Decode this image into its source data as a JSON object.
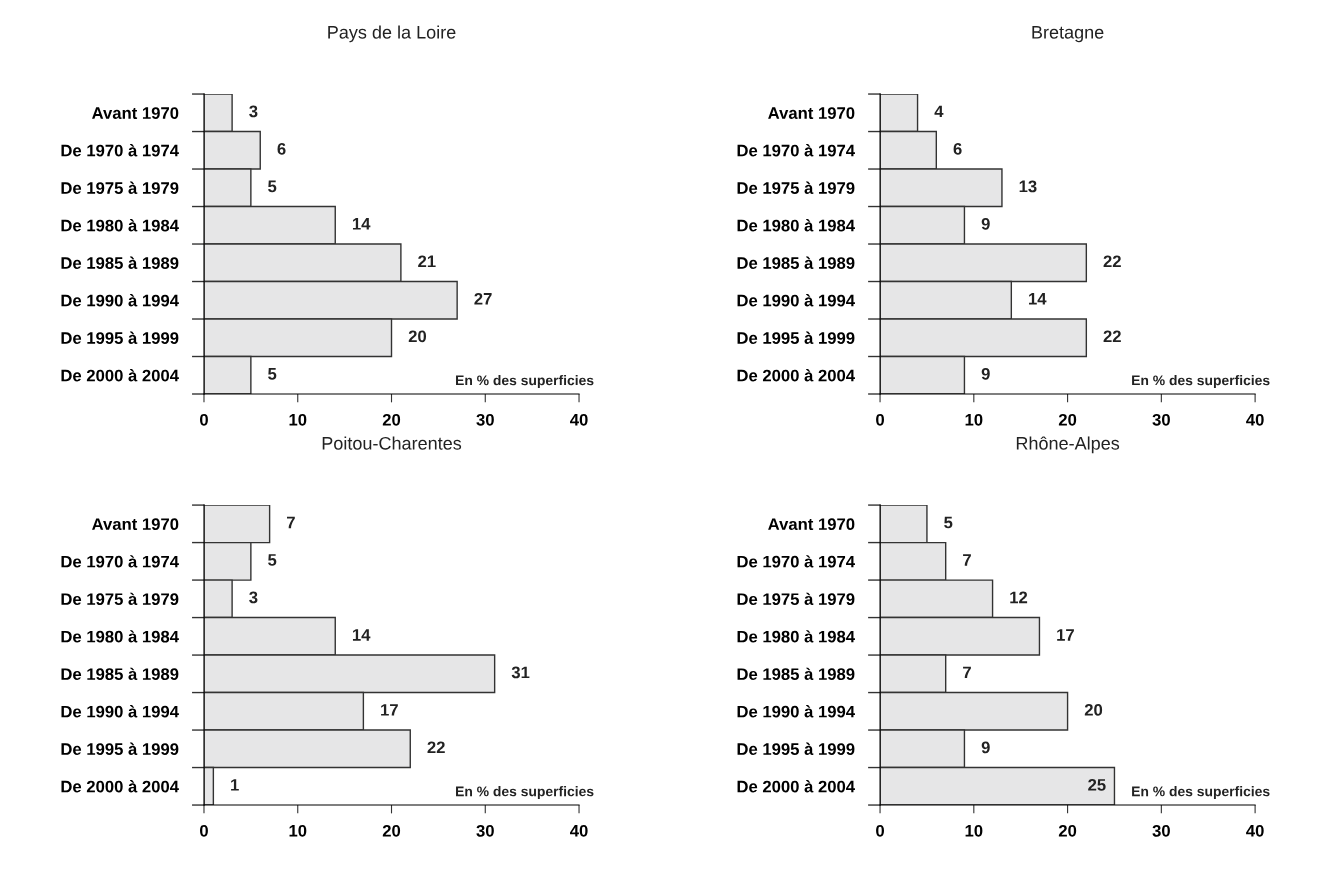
{
  "chart_data": [
    {
      "type": "bar",
      "orientation": "horizontal",
      "title": "Pays de la Loire",
      "categories": [
        "Avant 1970",
        "De 1970 à 1974",
        "De 1975 à 1979",
        "De 1980 à 1984",
        "De 1985 à 1989",
        "De 1990 à 1994",
        "De 1995 à 1999",
        "De 2000 à 2004"
      ],
      "values": [
        3,
        6,
        5,
        14,
        21,
        27,
        20,
        5
      ],
      "color": "#e6e6e7",
      "xlim": [
        0,
        40
      ],
      "xticks": [
        0,
        10,
        20,
        30,
        40
      ],
      "data_labels": true,
      "grid": false,
      "legend": false,
      "annotations": [
        "En % des superficies"
      ]
    },
    {
      "type": "bar",
      "orientation": "horizontal",
      "title": "Bretagne",
      "categories": [
        "Avant 1970",
        "De 1970 à 1974",
        "De 1975 à 1979",
        "De 1980 à 1984",
        "De 1985 à 1989",
        "De 1990 à 1994",
        "De 1995 à 1999",
        "De 2000 à 2004"
      ],
      "values": [
        4,
        6,
        13,
        9,
        22,
        14,
        22,
        9
      ],
      "color": "#e6e6e7",
      "xlim": [
        0,
        40
      ],
      "xticks": [
        0,
        10,
        20,
        30,
        40
      ],
      "data_labels": true,
      "grid": false,
      "legend": false,
      "annotations": [
        "En % des superficies"
      ]
    },
    {
      "type": "bar",
      "orientation": "horizontal",
      "title": "Poitou-Charentes",
      "categories": [
        "Avant 1970",
        "De 1970 à 1974",
        "De 1975 à 1979",
        "De 1980 à 1984",
        "De 1985 à 1989",
        "De 1990 à 1994",
        "De 1995 à 1999",
        "De 2000 à 2004"
      ],
      "values": [
        7,
        5,
        3,
        14,
        31,
        17,
        22,
        1
      ],
      "color": "#e6e6e7",
      "xlim": [
        0,
        40
      ],
      "xticks": [
        0,
        10,
        20,
        30,
        40
      ],
      "data_labels": true,
      "grid": false,
      "legend": false,
      "annotations": [
        "En % des superficies"
      ]
    },
    {
      "type": "bar",
      "orientation": "horizontal",
      "title": "Rhône-Alpes",
      "categories": [
        "Avant 1970",
        "De 1970 à 1974",
        "De 1975 à 1979",
        "De 1980 à 1984",
        "De 1985 à 1989",
        "De 1990 à 1994",
        "De 1995 à 1999",
        "De 2000 à 2004"
      ],
      "values": [
        5,
        7,
        12,
        17,
        7,
        20,
        9,
        25
      ],
      "color": "#e6e6e7",
      "xlim": [
        0,
        40
      ],
      "xticks": [
        0,
        10,
        20,
        30,
        40
      ],
      "data_labels": true,
      "grid": false,
      "legend": false,
      "annotations": [
        "En % des superficies"
      ]
    }
  ]
}
